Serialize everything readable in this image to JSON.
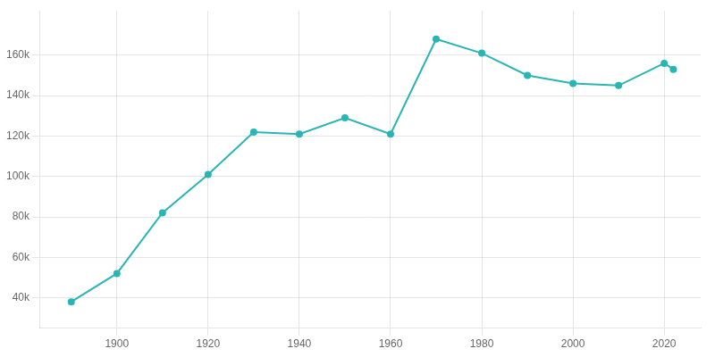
{
  "chart_data": {
    "type": "line",
    "x": [
      1890,
      1900,
      1910,
      1920,
      1930,
      1940,
      1950,
      1960,
      1970,
      1980,
      1990,
      2000,
      2010,
      2020,
      2022
    ],
    "values": [
      38000,
      52000,
      82000,
      101000,
      122000,
      121000,
      129000,
      121000,
      168000,
      161000,
      150000,
      146000,
      145000,
      156000,
      153000
    ],
    "color": "#2ab5b5",
    "marker": "circle",
    "xlim": [
      1883,
      2028
    ],
    "xticks": [
      1900,
      1920,
      1940,
      1960,
      1980,
      2000,
      2020
    ],
    "ylim": [
      25000,
      182000
    ],
    "yticks": [
      {
        "value": 40000,
        "label": "40k"
      },
      {
        "value": 60000,
        "label": "60k"
      },
      {
        "value": 80000,
        "label": "80k"
      },
      {
        "value": 100000,
        "label": "100k"
      },
      {
        "value": 120000,
        "label": "120k"
      },
      {
        "value": 140000,
        "label": "140k"
      },
      {
        "value": 160000,
        "label": "160k"
      }
    ],
    "grid": true
  }
}
